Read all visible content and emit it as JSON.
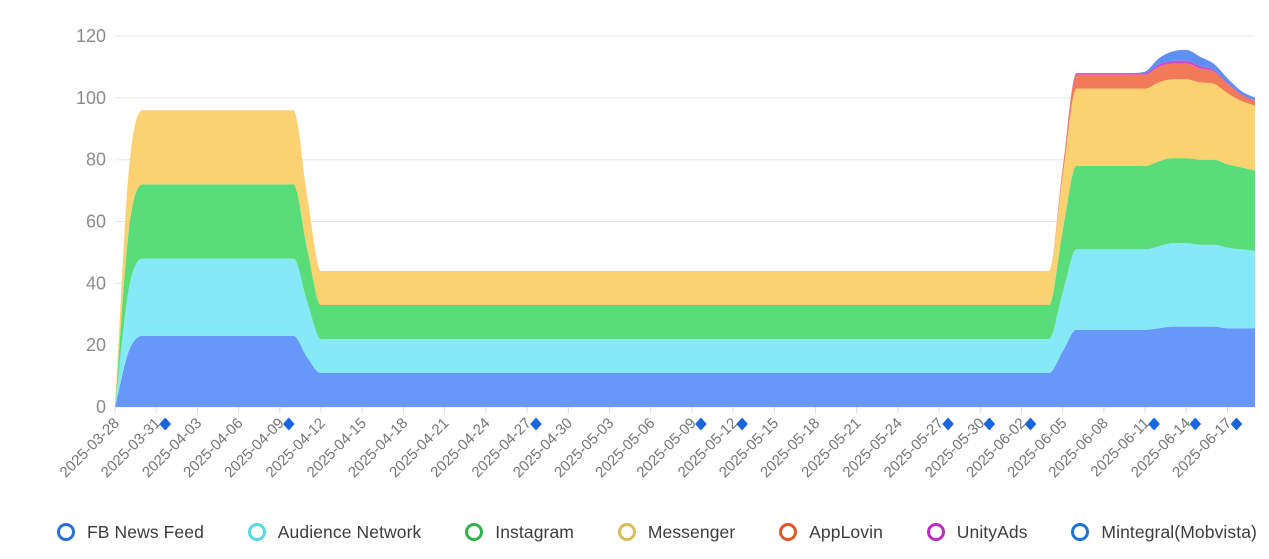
{
  "chart_data": {
    "type": "area",
    "stacked": true,
    "smooth": true,
    "title": "",
    "legend_position": "bottom",
    "grid_on": true,
    "y_range": [
      0,
      120
    ],
    "y_ticks": [
      0,
      20,
      40,
      60,
      80,
      100,
      120
    ],
    "x_tick_labels": [
      "2025-03-28",
      "2025-03-31",
      "2025-04-03",
      "2025-04-06",
      "2025-04-09",
      "2025-04-12",
      "2025-04-15",
      "2025-04-18",
      "2025-04-21",
      "2025-04-24",
      "2025-04-27",
      "2025-04-30",
      "2025-05-03",
      "2025-05-06",
      "2025-05-09",
      "2025-05-12",
      "2025-05-15",
      "2025-05-18",
      "2025-05-21",
      "2025-05-24",
      "2025-05-27",
      "2025-05-30",
      "2025-06-02",
      "2025-06-05",
      "2025-06-08",
      "2025-06-11",
      "2025-06-14",
      "2025-06-17"
    ],
    "flagged_dates": [
      "2025-03-31",
      "2025-04-09",
      "2025-04-27",
      "2025-05-09",
      "2025-05-12",
      "2025-05-27",
      "2025-05-30",
      "2025-06-02",
      "2025-06-11",
      "2025-06-14",
      "2025-06-17"
    ],
    "dates": [
      "2025-03-28",
      "2025-03-29",
      "2025-03-30",
      "2025-03-31",
      "2025-04-01",
      "2025-04-02",
      "2025-04-03",
      "2025-04-04",
      "2025-04-05",
      "2025-04-06",
      "2025-04-07",
      "2025-04-08",
      "2025-04-09",
      "2025-04-10",
      "2025-04-11",
      "2025-04-12",
      "2025-04-13",
      "2025-04-14",
      "2025-04-15",
      "2025-04-16",
      "2025-04-17",
      "2025-04-18",
      "2025-04-19",
      "2025-04-20",
      "2025-04-21",
      "2025-04-22",
      "2025-04-23",
      "2025-04-24",
      "2025-04-25",
      "2025-04-26",
      "2025-04-27",
      "2025-04-28",
      "2025-04-29",
      "2025-04-30",
      "2025-05-01",
      "2025-05-02",
      "2025-05-03",
      "2025-05-04",
      "2025-05-05",
      "2025-05-06",
      "2025-05-07",
      "2025-05-08",
      "2025-05-09",
      "2025-05-10",
      "2025-05-11",
      "2025-05-12",
      "2025-05-13",
      "2025-05-14",
      "2025-05-15",
      "2025-05-16",
      "2025-05-17",
      "2025-05-18",
      "2025-05-19",
      "2025-05-20",
      "2025-05-21",
      "2025-05-22",
      "2025-05-23",
      "2025-05-24",
      "2025-05-25",
      "2025-05-26",
      "2025-05-27",
      "2025-05-28",
      "2025-05-29",
      "2025-05-30",
      "2025-05-31",
      "2025-06-01",
      "2025-06-02",
      "2025-06-03",
      "2025-06-04",
      "2025-06-05",
      "2025-06-06",
      "2025-06-07",
      "2025-06-08",
      "2025-06-09",
      "2025-06-10",
      "2025-06-11",
      "2025-06-12",
      "2025-06-13",
      "2025-06-14",
      "2025-06-15",
      "2025-06-16",
      "2025-06-17",
      "2025-06-18",
      "2025-06-19"
    ],
    "series": [
      {
        "name": "FB News Feed",
        "area_color": "#5B8FF9",
        "legend_color": "#2B6FD9",
        "values": [
          0,
          18,
          23,
          23,
          23,
          23,
          23,
          23,
          23,
          23,
          23,
          23,
          23,
          23,
          16,
          11,
          11,
          11,
          11,
          11,
          11,
          11,
          11,
          11,
          11,
          11,
          11,
          11,
          11,
          11,
          11,
          11,
          11,
          11,
          11,
          11,
          11,
          11,
          11,
          11,
          11,
          11,
          11,
          11,
          11,
          11,
          11,
          11,
          11,
          11,
          11,
          11,
          11,
          11,
          11,
          11,
          11,
          11,
          11,
          11,
          11,
          11,
          11,
          11,
          11,
          11,
          11,
          11,
          11,
          18,
          25,
          25,
          25,
          25,
          25,
          25,
          25.5,
          26,
          26,
          26,
          26,
          25.5,
          25.5,
          25.5
        ]
      },
      {
        "name": "Audience Network",
        "area_color": "#7DE7F6",
        "legend_color": "#55D9E8",
        "values": [
          0,
          20,
          25,
          25,
          25,
          25,
          25,
          25,
          25,
          25,
          25,
          25,
          25,
          25,
          18,
          11,
          11,
          11,
          11,
          11,
          11,
          11,
          11,
          11,
          11,
          11,
          11,
          11,
          11,
          11,
          11,
          11,
          11,
          11,
          11,
          11,
          11,
          11,
          11,
          11,
          11,
          11,
          11,
          11,
          11,
          11,
          11,
          11,
          11,
          11,
          11,
          11,
          11,
          11,
          11,
          11,
          11,
          11,
          11,
          11,
          11,
          11,
          11,
          11,
          11,
          11,
          11,
          11,
          11,
          19,
          26,
          26,
          26,
          26,
          26,
          26,
          26.5,
          27,
          27,
          26.5,
          26.5,
          26,
          25.5,
          25
        ]
      },
      {
        "name": "Instagram",
        "area_color": "#4FD971",
        "legend_color": "#2FB44B",
        "values": [
          0,
          19,
          24,
          24,
          24,
          24,
          24,
          24,
          24,
          24,
          24,
          24,
          24,
          24,
          17,
          11,
          11,
          11,
          11,
          11,
          11,
          11,
          11,
          11,
          11,
          11,
          11,
          11,
          11,
          11,
          11,
          11,
          11,
          11,
          11,
          11,
          11,
          11,
          11,
          11,
          11,
          11,
          11,
          11,
          11,
          11,
          11,
          11,
          11,
          11,
          11,
          11,
          11,
          11,
          11,
          11,
          11,
          11,
          11,
          11,
          11,
          11,
          11,
          11,
          11,
          11,
          11,
          11,
          11,
          20,
          27,
          27,
          27,
          27,
          27,
          27,
          27.5,
          27.5,
          27.5,
          27.5,
          27.5,
          27,
          26.5,
          26
        ]
      },
      {
        "name": "Messenger",
        "area_color": "#FBCF66",
        "legend_color": "#DDBC55",
        "values": [
          0,
          19,
          24,
          24,
          24,
          24,
          24,
          24,
          24,
          24,
          24,
          24,
          24,
          24,
          17,
          11,
          11,
          11,
          11,
          11,
          11,
          11,
          11,
          11,
          11,
          11,
          11,
          11,
          11,
          11,
          11,
          11,
          11,
          11,
          11,
          11,
          11,
          11,
          11,
          11,
          11,
          11,
          11,
          11,
          11,
          11,
          11,
          11,
          11,
          11,
          11,
          11,
          11,
          11,
          11,
          11,
          11,
          11,
          11,
          11,
          11,
          11,
          11,
          11,
          11,
          11,
          11,
          11,
          11,
          18,
          25,
          25,
          25,
          25,
          25,
          25,
          25.5,
          25.5,
          25.5,
          25,
          24.5,
          23,
          21.5,
          21
        ]
      },
      {
        "name": "AppLovin",
        "area_color": "#F2704B",
        "legend_color": "#E0562B",
        "values": [
          0,
          0,
          0,
          0,
          0,
          0,
          0,
          0,
          0,
          0,
          0,
          0,
          0,
          0,
          0,
          0,
          0,
          0,
          0,
          0,
          0,
          0,
          0,
          0,
          0,
          0,
          0,
          0,
          0,
          0,
          0,
          0,
          0,
          0,
          0,
          0,
          0,
          0,
          0,
          0,
          0,
          0,
          0,
          0,
          0,
          0,
          0,
          0,
          0,
          0,
          0,
          0,
          0,
          0,
          0,
          0,
          0,
          0,
          0,
          0,
          0,
          0,
          0,
          0,
          0,
          0,
          0,
          0,
          0,
          2,
          4.5,
          4.5,
          4.5,
          4.5,
          4.5,
          4.5,
          5,
          5,
          5,
          4.5,
          4,
          3,
          2,
          1.5
        ]
      },
      {
        "name": "UnityAds",
        "area_color": "#C63FCB",
        "legend_color": "#BC2BC4",
        "values": [
          0,
          0,
          0,
          0,
          0,
          0,
          0,
          0,
          0,
          0,
          0,
          0,
          0,
          0,
          0,
          0,
          0,
          0,
          0,
          0,
          0,
          0,
          0,
          0,
          0,
          0,
          0,
          0,
          0,
          0,
          0,
          0,
          0,
          0,
          0,
          0,
          0,
          0,
          0,
          0,
          0,
          0,
          0,
          0,
          0,
          0,
          0,
          0,
          0,
          0,
          0,
          0,
          0,
          0,
          0,
          0,
          0,
          0,
          0,
          0,
          0,
          0,
          0,
          0,
          0,
          0,
          0,
          0,
          0,
          0.3,
          0.5,
          0.5,
          0.5,
          0.5,
          0.5,
          0.5,
          0.8,
          1,
          1,
          0.8,
          0.5,
          0.3,
          0.2,
          0.2
        ]
      },
      {
        "name": "Mintegral(Mobvista)",
        "area_color": "#5287F0",
        "legend_color": "#2173D2",
        "values": [
          0,
          0,
          0,
          0,
          0,
          0,
          0,
          0,
          0,
          0,
          0,
          0,
          0,
          0,
          0,
          0,
          0,
          0,
          0,
          0,
          0,
          0,
          0,
          0,
          0,
          0,
          0,
          0,
          0,
          0,
          0,
          0,
          0,
          0,
          0,
          0,
          0,
          0,
          0,
          0,
          0,
          0,
          0,
          0,
          0,
          0,
          0,
          0,
          0,
          0,
          0,
          0,
          0,
          0,
          0,
          0,
          0,
          0,
          0,
          0,
          0,
          0,
          0,
          0,
          0,
          0,
          0,
          0,
          0,
          0,
          0,
          0,
          0,
          0,
          0,
          0.5,
          2,
          3,
          3.5,
          3,
          2,
          1.5,
          1,
          0.8
        ]
      }
    ],
    "colors": {
      "grid_line": "#e7e7e7",
      "tick_mark": "#d9d9d9",
      "y_label": "#8c8c8c",
      "x_label": "#757575",
      "flag_marker": "#1766de",
      "legend_text": "#3c3c3c",
      "background": "#ffffff"
    }
  }
}
